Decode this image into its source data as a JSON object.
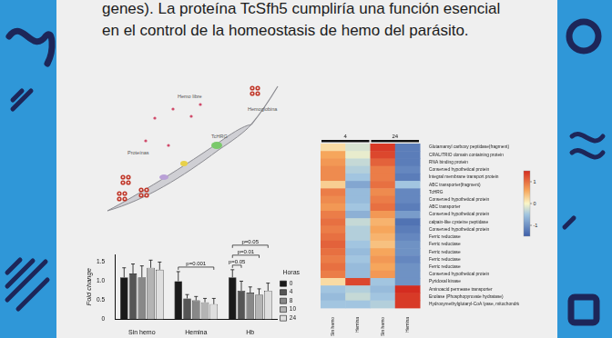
{
  "header": {
    "lines": [
      "genes). La proteína TcSfh5 cumpliría una función esencial",
      "en el control de la homeostasis de hemo del parásito."
    ]
  },
  "diagram": {
    "labels": [
      "Proteínas",
      "Hemo libre",
      "TcHRG",
      "Hemoglobina"
    ]
  },
  "chart_data": [
    {
      "type": "bar",
      "y_label": "Fold change",
      "categories": [
        "Sin hemo",
        "Hemina",
        "Hb"
      ],
      "legend": "right",
      "legend_title": "Horas",
      "grid": false,
      "series": [
        {
          "name": "0",
          "color": "#1a1a1a",
          "values": [
            1.1,
            1.0,
            1.1
          ],
          "errors": [
            0.25,
            0.25,
            0.2
          ]
        },
        {
          "name": "4",
          "color": "#555555",
          "values": [
            1.2,
            0.55,
            0.75
          ],
          "errors": [
            0.25,
            0.1,
            0.25
          ]
        },
        {
          "name": "8",
          "color": "#888888",
          "values": [
            1.1,
            0.5,
            0.7
          ],
          "errors": [
            0.3,
            0.1,
            0.15
          ]
        },
        {
          "name": "10",
          "color": "#b4b4b4",
          "values": [
            1.35,
            0.45,
            0.65
          ],
          "errors": [
            0.2,
            0.1,
            0.15
          ]
        },
        {
          "name": "24",
          "color": "#dedede",
          "values": [
            1.3,
            0.4,
            0.75
          ],
          "errors": [
            0.2,
            0.15,
            0.2
          ]
        }
      ],
      "ylim": [
        0,
        1.7
      ],
      "yticks": [
        0,
        0.5,
        {
          "value": 1,
          "label": "1.0"
        },
        1.5
      ],
      "annotations": [
        {
          "text": "p=0.001",
          "group": "Hemina",
          "from": "0",
          "to": "24"
        },
        {
          "text": "p=0.05",
          "group": "Hb",
          "from": "0",
          "to": "24"
        },
        {
          "text": "p=0.01",
          "group": "Hb",
          "from": "0",
          "to": "10"
        },
        {
          "text": "p=0.05",
          "group": "Hb",
          "from": "0",
          "to": "4"
        }
      ]
    },
    {
      "type": "heatmap",
      "groups": [
        {
          "label": "4",
          "categories": [
            "Sin hemo",
            "Hemina"
          ]
        },
        {
          "label": "24",
          "categories": [
            "Sin hemo",
            "Hemina"
          ]
        }
      ],
      "rows": [
        "Glutamamyl carboxy peptidase(fragment)",
        "CRAL/TRIO domain containing protein",
        "RNA binding protein",
        "Conserved hypothetical protein",
        "Integral membrane transport protein",
        "ABC transporter(fragment)",
        "TcHRG",
        "Conserved hypothetical protein",
        "ABC transporter",
        "Conserved hypothetical protein",
        "calpain-like cysteine peptidase",
        "Conserved hypothetical protein",
        "Ferric reductase",
        "Ferric reductase",
        "Ferric reductase",
        "Ferric reductase",
        "Ferric reductase",
        "Conserved hypothetical protein",
        "Pyridoxal kinase",
        "Aminoacid permease transporter",
        "Enolase (Phosphopyruvate hydratase)",
        "Hydroxymethylglutaryl-CoA lyase, mitochondrial"
      ],
      "cells": [
        [
          0.2,
          -0.2,
          1.4,
          -1.2
        ],
        [
          0.6,
          -0.1,
          1.3,
          -1.2
        ],
        [
          0.7,
          -0.3,
          1.1,
          -1.2
        ],
        [
          0.8,
          -0.4,
          0.9,
          -1.1
        ],
        [
          0.8,
          -0.5,
          0.9,
          -1.2
        ],
        [
          0.3,
          -0.8,
          1.0,
          -0.5
        ],
        [
          0.9,
          -0.6,
          0.8,
          -1.1
        ],
        [
          0.8,
          -0.6,
          0.9,
          -1.1
        ],
        [
          0.7,
          -0.5,
          1.0,
          -1.2
        ],
        [
          0.9,
          -0.7,
          0.7,
          -0.9
        ],
        [
          1.0,
          -0.3,
          0.5,
          -1.3
        ],
        [
          0.9,
          -0.4,
          0.6,
          -1.2
        ],
        [
          1.0,
          -0.4,
          0.5,
          -1.1
        ],
        [
          1.1,
          -0.5,
          0.4,
          -1.0
        ],
        [
          1.0,
          -0.6,
          0.6,
          -1.0
        ],
        [
          0.9,
          -0.5,
          0.7,
          -1.1
        ],
        [
          1.0,
          -0.6,
          0.6,
          -1.0
        ],
        [
          0.9,
          -0.6,
          0.7,
          -1.0
        ],
        [
          0.2,
          1.3,
          -0.5,
          -1.0
        ],
        [
          -0.5,
          -0.4,
          -0.6,
          1.5
        ],
        [
          -0.6,
          -0.3,
          -0.5,
          1.4
        ],
        [
          -0.5,
          -0.5,
          -0.4,
          1.4
        ]
      ],
      "colorbar": {
        "range": [
          -1.5,
          1.5
        ],
        "ticks": [
          -1,
          0,
          1
        ]
      }
    }
  ]
}
